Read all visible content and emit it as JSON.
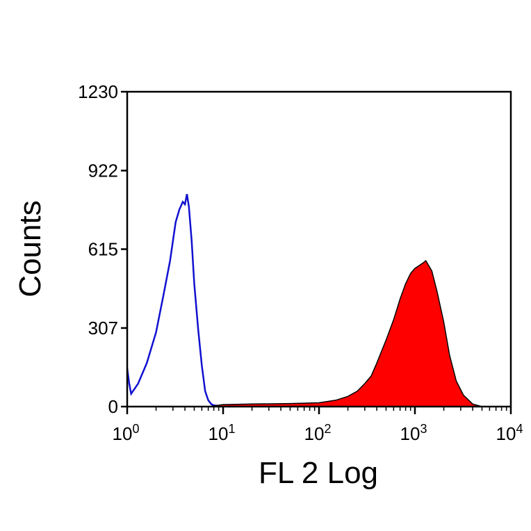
{
  "chart_data": {
    "type": "area",
    "xlabel": "FL 2 Log",
    "ylabel": "Counts",
    "x_scale": "log",
    "xlim": [
      1,
      10000
    ],
    "ylim": [
      0,
      1230
    ],
    "x_ticks": [
      {
        "base": "10",
        "exp": "0"
      },
      {
        "base": "10",
        "exp": "1"
      },
      {
        "base": "10",
        "exp": "2"
      },
      {
        "base": "10",
        "exp": "3"
      },
      {
        "base": "10",
        "exp": "4"
      }
    ],
    "y_ticks": [
      "0",
      "307",
      "615",
      "922",
      "1230"
    ],
    "grid": false,
    "legend": "none",
    "series": [
      {
        "style": "outline",
        "color": "#1010d0",
        "x": [
          1.0,
          1.05,
          1.1,
          1.3,
          1.6,
          2.0,
          2.4,
          2.8,
          3.2,
          3.5,
          3.8,
          4.0,
          4.2,
          4.4,
          4.7,
          5.0,
          5.5,
          6.0,
          6.5,
          7.0,
          7.5,
          8.0,
          9.0,
          10.0,
          12.0
        ],
        "y": [
          150,
          90,
          50,
          90,
          170,
          290,
          440,
          570,
          720,
          770,
          800,
          790,
          830,
          780,
          650,
          480,
          300,
          160,
          60,
          25,
          10,
          5,
          3,
          2,
          0
        ]
      },
      {
        "style": "filled",
        "color": "#ff0000",
        "edge_color": "#000000",
        "x": [
          7,
          10,
          20,
          50,
          100,
          150,
          200,
          250,
          300,
          350,
          400,
          500,
          600,
          700,
          800,
          900,
          1000,
          1100,
          1200,
          1300,
          1500,
          1700,
          2000,
          2300,
          2700,
          3200,
          4000,
          5000
        ],
        "y": [
          0,
          8,
          10,
          12,
          15,
          25,
          40,
          60,
          90,
          120,
          170,
          260,
          340,
          420,
          480,
          520,
          540,
          550,
          560,
          570,
          530,
          450,
          330,
          200,
          100,
          45,
          10,
          0
        ]
      }
    ]
  }
}
